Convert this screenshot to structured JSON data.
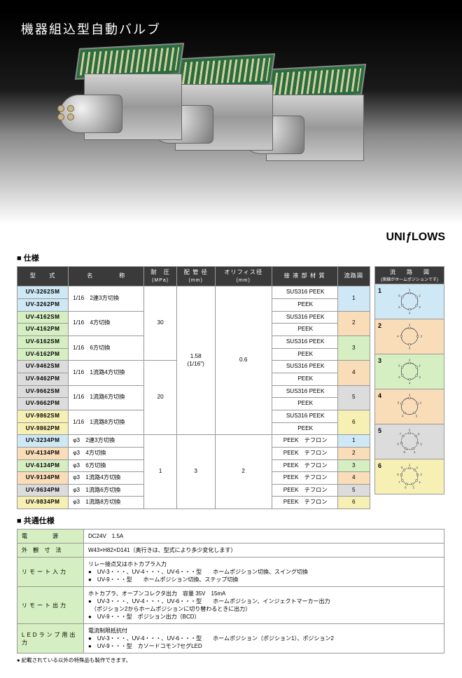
{
  "hero": {
    "title": "機器組込型自動バルブ"
  },
  "logo": {
    "text_left": "UNI",
    "text_right": "LOWS",
    "slash": "ƒ"
  },
  "section_spec_label": "■ 仕様",
  "spec_headers": {
    "model": "型　　式",
    "name": "名　　　　称",
    "pressure": "耐　圧",
    "pressure_unit": "(MPa)",
    "pipe": "配 管 径",
    "pipe_unit": "(mm)",
    "orifice": "オリフィス径",
    "orifice_unit": "(mm)",
    "material": "接 液 部 材 質",
    "diagram": "流路図"
  },
  "diagram_header": {
    "title": "流　　路　　図",
    "note": "(実線がホームポジションです)"
  },
  "spec_rows": [
    {
      "model": "UV-3262SM",
      "cls": "c-blue",
      "name": "1/16　2連3方切換",
      "pressure": "30",
      "pipe": "1.58\n(1/16\")",
      "orifice": "0.6",
      "mat": "SUS316 PEEK",
      "diag": "1",
      "diag_cls": "c-blue"
    },
    {
      "model": "UV-3262PM",
      "cls": "c-blue",
      "mat": "PEEK"
    },
    {
      "model": "UV-4162SM",
      "cls": "c-green",
      "name": "1/16　4方切換",
      "mat": "SUS316 PEEK",
      "diag": "2",
      "diag_cls": "c-orange"
    },
    {
      "model": "UV-4162PM",
      "cls": "c-green",
      "mat": "PEEK"
    },
    {
      "model": "UV-6162SM",
      "cls": "c-green",
      "name": "1/16　6方切換",
      "mat": "SUS316 PEEK",
      "diag": "3",
      "diag_cls": "c-green"
    },
    {
      "model": "UV-6162PM",
      "cls": "c-green",
      "mat": "PEEK"
    },
    {
      "model": "UV-9462SM",
      "cls": "c-gray",
      "name": "1/16　1流路4方切換",
      "pressure": "20",
      "mat": "SUS316 PEEK",
      "diag": "4",
      "diag_cls": "c-orange"
    },
    {
      "model": "UV-9462PM",
      "cls": "c-gray",
      "mat": "PEEK"
    },
    {
      "model": "UV-9662SM",
      "cls": "c-gray",
      "name": "1/16　1流路6方切換",
      "mat": "SUS316 PEEK",
      "diag": "5",
      "diag_cls": "c-gray"
    },
    {
      "model": "UV-9662PM",
      "cls": "c-gray",
      "mat": "PEEK"
    },
    {
      "model": "UV-9862SM",
      "cls": "c-yellow",
      "name": "1/16　1流路8方切換",
      "mat": "SUS316 PEEK",
      "diag": "6",
      "diag_cls": "c-yellow"
    },
    {
      "model": "UV-9862PM",
      "cls": "c-yellow",
      "mat": "PEEK"
    },
    {
      "model": "UV-3234PM",
      "cls": "c-blue",
      "name": "φ3　2連3方切換",
      "pressure": "1",
      "pipe": "3",
      "orifice": "2",
      "mat": "PEEK　テフロン",
      "diag": "1",
      "diag_cls": "c-blue",
      "single": true
    },
    {
      "model": "UV-4134PM",
      "cls": "c-orange",
      "name": "φ3　4方切換",
      "mat": "PEEK　テフロン",
      "diag": "2",
      "diag_cls": "c-orange",
      "single": true
    },
    {
      "model": "UV-6134PM",
      "cls": "c-green",
      "name": "φ3　6方切換",
      "mat": "PEEK　テフロン",
      "diag": "3",
      "diag_cls": "c-green",
      "single": true
    },
    {
      "model": "UV-9134PM",
      "cls": "c-orange",
      "name": "φ3　1流路4方切換",
      "mat": "PEEK　テフロン",
      "diag": "4",
      "diag_cls": "c-orange",
      "single": true
    },
    {
      "model": "UV-9634PM",
      "cls": "c-gray",
      "name": "φ3　1流路6方切換",
      "mat": "PEEK　テフロン",
      "diag": "5",
      "diag_cls": "c-gray",
      "single": true
    },
    {
      "model": "UV-9834PM",
      "cls": "c-yellow",
      "name": "φ3　1流路8方切換",
      "mat": "PEEK　テフロン",
      "diag": "6",
      "diag_cls": "c-yellow",
      "single": true
    }
  ],
  "diagrams": [
    {
      "n": "1",
      "cls": "c-blue",
      "ports": 6
    },
    {
      "n": "2",
      "cls": "c-orange",
      "ports": 4
    },
    {
      "n": "3",
      "cls": "c-green",
      "ports": 6
    },
    {
      "n": "4",
      "cls": "c-orange",
      "ports": 5
    },
    {
      "n": "5",
      "cls": "c-gray",
      "ports": 7
    },
    {
      "n": "6",
      "cls": "c-yellow",
      "ports": 9
    }
  ],
  "section_common_label": "■ 共通仕様",
  "common_rows": [
    {
      "k": "電　　　源",
      "v": "DC24V　1.5A"
    },
    {
      "k": "外 観 寸 法",
      "v": "W43×H82×D141（奥行きは、型式により多少変化します）"
    },
    {
      "k": "リモート入力",
      "v": "リレー接点又はホトカプラ入力\n●　UV-3・・・、UV-4・・・、UV-6・・・型　　ホームポジション切換、スイング切換\n●　UV-9・・・型　　ホームポジション切換、ステップ切換"
    },
    {
      "k": "リモート出力",
      "v": "ホトカプラ、オープンコレクタ出力　容量 35V　15mA\n●　UV-3・・・、UV-4・・・、UV-6・・・型　　ホームポジション、インジェクトマーカー出力\n　（ポジション2からホームポジションに切り替わるときに出力）\n●　UV-9・・・型　ポジション出力（BCD）"
    },
    {
      "k": "LEDランプ用出力",
      "v": "電流制限抵抗付\n●　UV-3・・・、UV-4・・・、UV-6・・・型　　ホームポジション（ポジション1）、ポジション2\n●　UV-9・・・型　カソードコモン7セグLED"
    }
  ],
  "footnote": "● 記載されている以外の特殊品も製作できます。",
  "svg_style": {
    "stroke": "#333",
    "stroke_width": 0.8,
    "fill": "none",
    "label_size": 5
  }
}
